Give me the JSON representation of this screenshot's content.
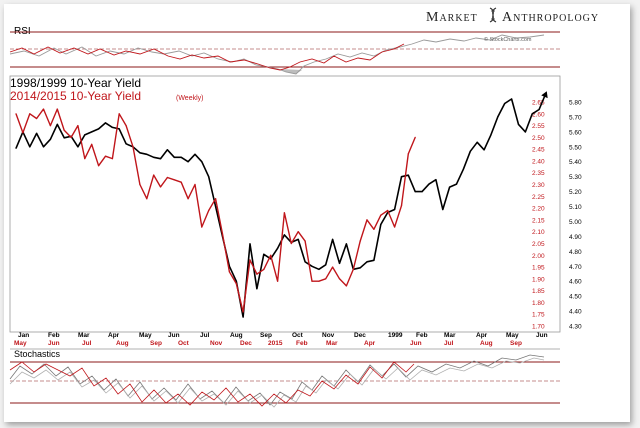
{
  "brand": {
    "name_left": "Market",
    "name_right": "Anthropology",
    "logo_icon": "dna-helix-icon",
    "credit": "© StockCharts.com"
  },
  "colors": {
    "primary": "#000000",
    "accent": "#c0161b",
    "ref_line": "#8b1a1a",
    "gray_series": "#9a9a9a"
  },
  "rsi": {
    "label": "RSI"
  },
  "stoch": {
    "label": "Stochastics"
  },
  "legend": {
    "black_label": "1998/1999 10-Year Yield",
    "red_label": "2014/2015  10-Year Yield",
    "red_note": "(Weekly)"
  },
  "chart_data": {
    "type": "line",
    "title": "",
    "grid": false,
    "legend_position": "top-left",
    "x_axis_top_labels": [
      "Jan",
      "Feb",
      "Mar",
      "Apr",
      "May",
      "Jun",
      "Jul",
      "Aug",
      "Sep",
      "Oct",
      "Nov",
      "Dec",
      "1999",
      "Feb",
      "Mar",
      "Apr",
      "May",
      "Jun"
    ],
    "x_axis_bottom_labels": [
      "May",
      "Jun",
      "Jul",
      "Aug",
      "Sep",
      "Oct",
      "Nov",
      "Dec",
      "2015",
      "Feb",
      "Mar",
      "Apr",
      "Jun",
      "Jul",
      "Aug",
      "Sep"
    ],
    "y_axis_red": {
      "ticks": [
        "2.65",
        "2.60",
        "2.55",
        "2.50",
        "2.45",
        "2.40",
        "2.35",
        "2.30",
        "2.25",
        "2.20",
        "2.15",
        "2.10",
        "2.05",
        "2.00",
        "1.95",
        "1.90",
        "1.85",
        "1.80",
        "1.75",
        "1.70"
      ],
      "range": [
        1.7,
        2.65
      ]
    },
    "y_axis_black": {
      "ticks": [
        "5.80",
        "5.70",
        "5.60",
        "5.50",
        "5.40",
        "5.30",
        "5.20",
        "5.10",
        "5.00",
        "4.90",
        "4.80",
        "4.70",
        "4.60",
        "4.50",
        "4.40",
        "4.30"
      ],
      "range": [
        4.3,
        5.8
      ]
    },
    "series": [
      {
        "name": "1998/1999 10-Year Yield",
        "color": "#000000",
        "axis": "right",
        "x": [
          0,
          1,
          2,
          3,
          4,
          5,
          6,
          7,
          8,
          9,
          10,
          11,
          12,
          13,
          14,
          15,
          16,
          17,
          18,
          19,
          20,
          21,
          22,
          23,
          24,
          25,
          26,
          27,
          28,
          29,
          30,
          31,
          32,
          33,
          34,
          35,
          36,
          37,
          38,
          39,
          40,
          41,
          42,
          43,
          44,
          45,
          46,
          47,
          48,
          49,
          50,
          51,
          52,
          53,
          54,
          55,
          56,
          57,
          58,
          59,
          60,
          61,
          62,
          63,
          64,
          65,
          66,
          67,
          68,
          69,
          70,
          71,
          72,
          73,
          74,
          75,
          76,
          77
        ],
        "values": [
          5.49,
          5.6,
          5.5,
          5.59,
          5.5,
          5.55,
          5.65,
          5.56,
          5.57,
          5.5,
          5.58,
          5.6,
          5.62,
          5.66,
          5.63,
          5.62,
          5.52,
          5.5,
          5.46,
          5.45,
          5.43,
          5.42,
          5.48,
          5.43,
          5.43,
          5.4,
          5.45,
          5.4,
          5.3,
          5.1,
          4.9,
          4.7,
          4.6,
          4.36,
          4.85,
          4.55,
          4.78,
          4.75,
          4.82,
          4.91,
          4.86,
          4.88,
          4.73,
          4.7,
          4.68,
          4.71,
          4.88,
          4.72,
          4.85,
          4.68,
          4.69,
          4.73,
          4.74,
          4.98,
          5.06,
          5.08,
          5.3,
          5.31,
          5.2,
          5.2,
          5.25,
          5.28,
          5.08,
          5.23,
          5.25,
          5.35,
          5.47,
          5.53,
          5.48,
          5.58,
          5.7,
          5.79,
          5.82,
          5.65,
          5.6,
          5.72,
          5.75,
          5.86
        ]
      },
      {
        "name": "2014/2015  10-Year Yield",
        "color": "#c0161b",
        "axis": "left",
        "x": [
          0,
          1,
          2,
          3,
          4,
          5,
          6,
          7,
          8,
          9,
          10,
          11,
          12,
          13,
          14,
          15,
          16,
          17,
          18,
          19,
          20,
          21,
          22,
          23,
          24,
          25,
          26,
          27,
          28,
          29,
          30,
          31,
          32,
          33,
          34,
          35,
          36,
          37,
          38,
          39,
          40,
          41,
          42,
          43,
          44,
          45,
          46,
          47,
          48,
          49,
          50,
          51,
          52,
          53,
          54,
          55,
          56,
          57,
          58
        ],
        "values": [
          2.6,
          2.52,
          2.6,
          2.58,
          2.62,
          2.55,
          2.62,
          2.53,
          2.5,
          2.55,
          2.41,
          2.47,
          2.38,
          2.42,
          2.41,
          2.6,
          2.55,
          2.46,
          2.3,
          2.24,
          2.34,
          2.29,
          2.33,
          2.32,
          2.31,
          2.24,
          2.3,
          2.12,
          2.19,
          2.24,
          2.09,
          1.93,
          1.88,
          1.76,
          1.98,
          1.92,
          1.94,
          2.0,
          1.89,
          2.18,
          2.05,
          2.1,
          2.06,
          1.89,
          1.89,
          1.9,
          1.95,
          1.9,
          1.87,
          1.94,
          2.06,
          2.15,
          2.11,
          2.17,
          2.19,
          2.12,
          2.21,
          2.43,
          2.5
        ]
      }
    ]
  }
}
